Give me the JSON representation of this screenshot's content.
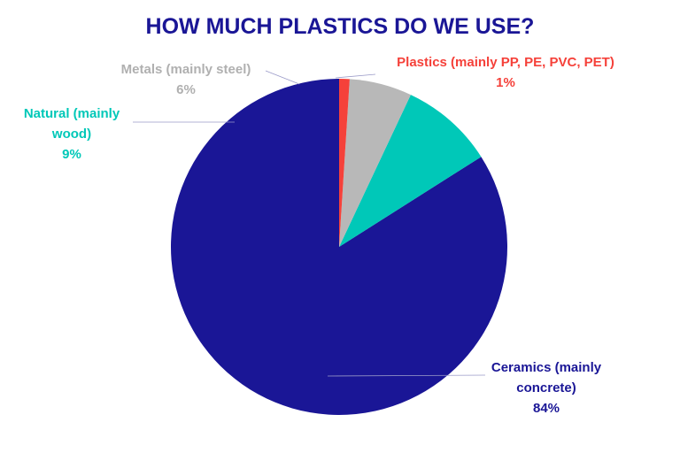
{
  "chart_data": {
    "type": "pie",
    "title": "HOW MUCH PLASTICS DO WE USE?",
    "title_color": "#1a1696",
    "slices": [
      {
        "label_lines": [
          "Ceramics (mainly",
          "concrete)"
        ],
        "percent_label": "84%",
        "value": 84,
        "color": "#1a1696"
      },
      {
        "label_lines": [
          "Natural (mainly",
          "wood)"
        ],
        "percent_label": "9%",
        "value": 9,
        "color": "#00c8b8"
      },
      {
        "label_lines": [
          "Metals (mainly steel)"
        ],
        "percent_label": "6%",
        "value": 6,
        "color": "#b8b8b8"
      },
      {
        "label_lines": [
          "Plastics (mainly PP, PE, PVC, PET)"
        ],
        "percent_label": "1%",
        "value": 1,
        "color": "#f5413a"
      }
    ],
    "start_angle": "12 o'clock",
    "direction": "counterclockwise"
  }
}
